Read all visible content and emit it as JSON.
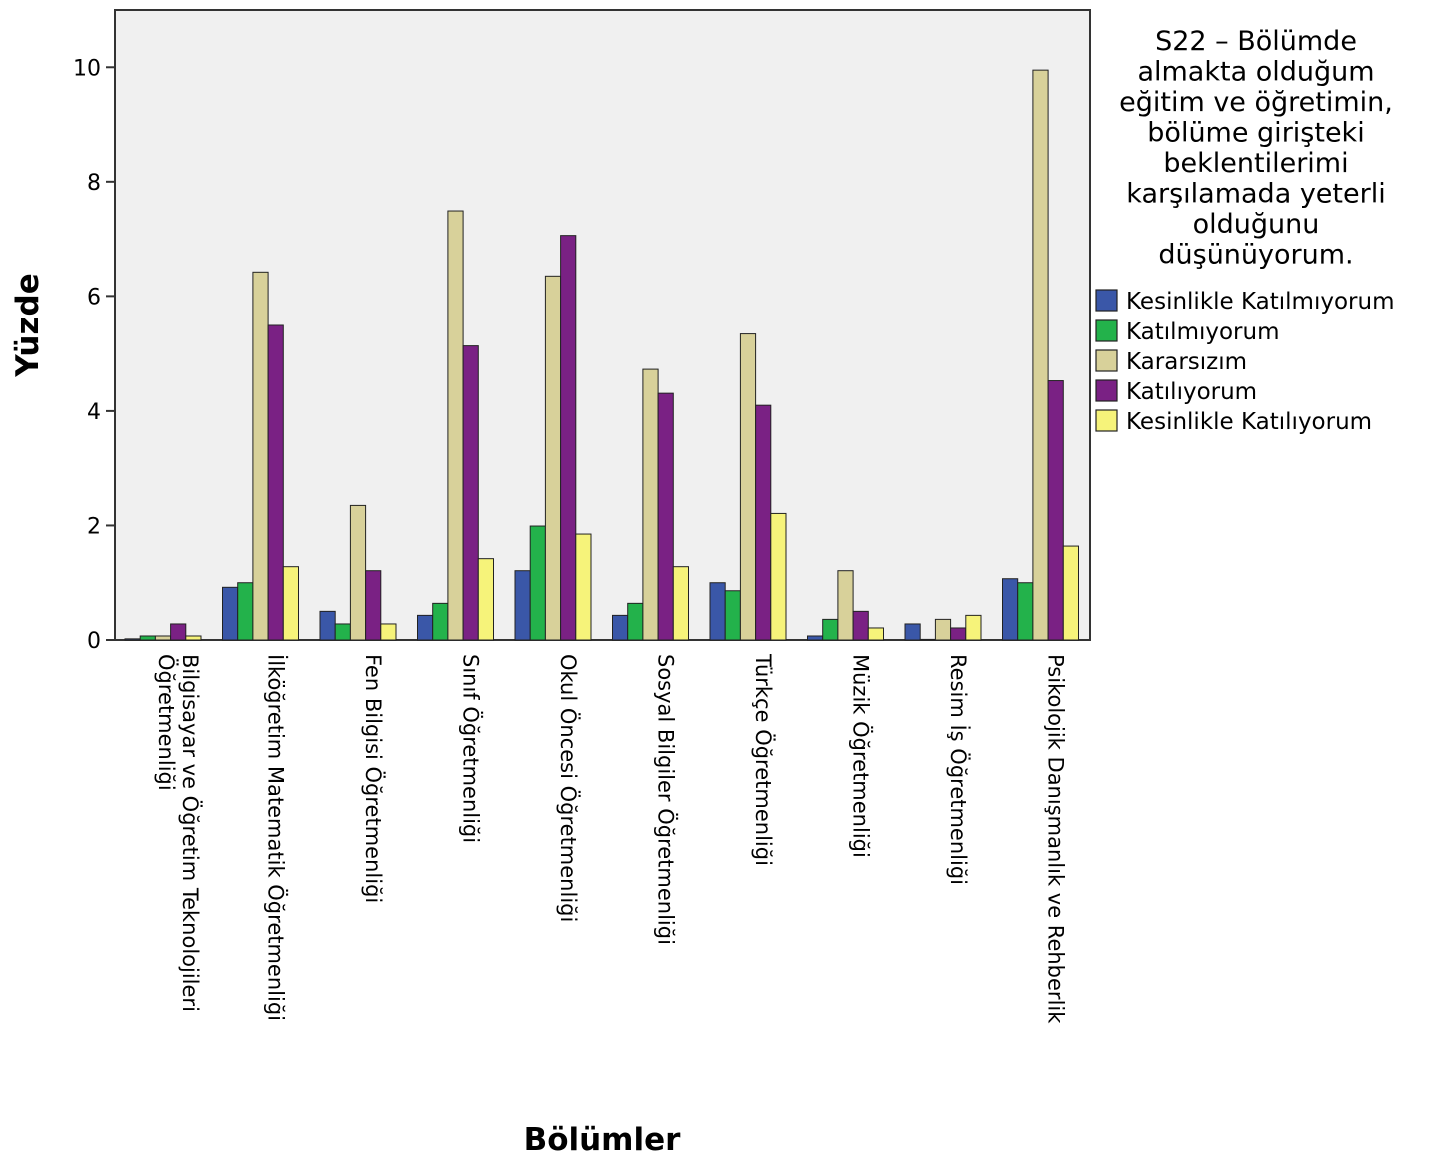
{
  "chart_data": {
    "type": "bar",
    "ylabel": "Yüzde",
    "xlabel": "Bölümler",
    "ylim": [
      0,
      11
    ],
    "yticks": [
      0,
      2,
      4,
      6,
      8,
      10
    ],
    "grid": false,
    "legend_position": "right",
    "legend_title_lines": [
      "S22 – Bölümde",
      "almakta olduğum",
      "eğitim ve öğretimin,",
      "bölüme girişteki",
      "beklentilerimi",
      "karşılamada yeterli",
      "olduğunu",
      "düşünüyorum."
    ],
    "categories": [
      [
        "Bilgisayar ve Öğretim Teknolojileri",
        "Öğretmenliği"
      ],
      [
        "İlköğretim Matematik Öğretmenliği"
      ],
      [
        "Fen Bilgisi Öğretmenliği"
      ],
      [
        "Sınıf Öğretmenliği"
      ],
      [
        "Okul Öncesi Öğretmenliği"
      ],
      [
        "Sosyal Bilgiler Öğretmenliği"
      ],
      [
        "Türkçe Öğretmenliği"
      ],
      [
        "Müzik Öğretmenliği"
      ],
      [
        "Resim İş Öğretmenliği"
      ],
      [
        "Psikolojik Danışmanlık ve Rehberlik"
      ]
    ],
    "series": [
      {
        "name": "Kesinlikle Katılmıyorum",
        "color": "#3a57a8",
        "values": [
          0.02,
          0.92,
          0.5,
          0.43,
          1.21,
          0.43,
          1.0,
          0.07,
          0.28,
          1.07
        ]
      },
      {
        "name": "Katılmıyorum",
        "color": "#23b24b",
        "values": [
          0.07,
          1.0,
          0.28,
          0.64,
          1.99,
          0.64,
          0.86,
          0.36,
          0.0,
          1.0
        ]
      },
      {
        "name": "Kararsızım",
        "color": "#d8d19a",
        "values": [
          0.07,
          6.42,
          2.35,
          7.49,
          6.35,
          4.73,
          5.35,
          1.21,
          0.36,
          9.95
        ]
      },
      {
        "name": "Katılıyorum",
        "color": "#7a2184",
        "values": [
          0.28,
          5.5,
          1.21,
          5.14,
          7.06,
          4.31,
          4.1,
          0.5,
          0.21,
          4.53
        ]
      },
      {
        "name": "Kesinlikle Katılıyorum",
        "color": "#f6f37a",
        "values": [
          0.07,
          1.28,
          0.28,
          1.42,
          1.85,
          1.28,
          2.21,
          0.21,
          0.43,
          1.64
        ]
      }
    ]
  }
}
